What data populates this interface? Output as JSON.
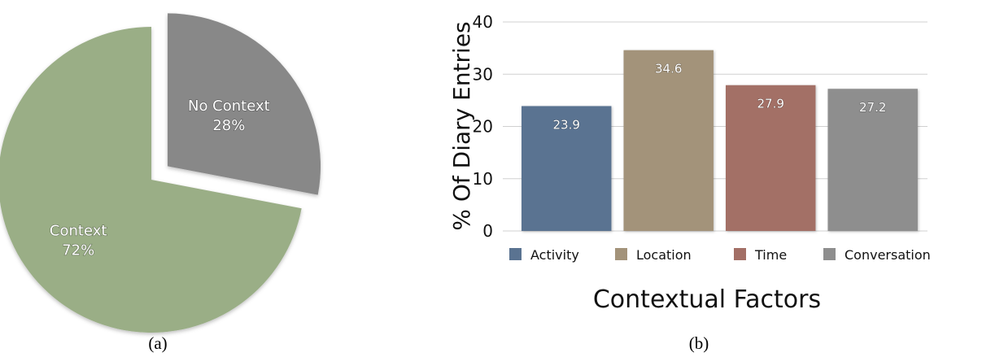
{
  "chart_data": [
    {
      "type": "pie",
      "title": "",
      "slices": [
        {
          "label": "Context",
          "pct_label": "72%",
          "value": 72,
          "color": "#9aae86",
          "exploded": false
        },
        {
          "label": "No Context",
          "pct_label": "28%",
          "value": 28,
          "color": "#888888",
          "exploded": true
        }
      ],
      "caption": "(a)"
    },
    {
      "type": "bar",
      "title": "",
      "categories": [
        "Activity",
        "Location",
        "Time",
        "Conversation"
      ],
      "values": [
        23.9,
        34.6,
        27.9,
        27.2
      ],
      "value_labels": [
        "23.9",
        "34.6",
        "27.9",
        "27.2"
      ],
      "colors": [
        "#5a7391",
        "#a3937a",
        "#a36f66",
        "#8e8e8e"
      ],
      "xlabel": "Contextual Factors",
      "ylabel": "% Of Diary Entries",
      "ylim": [
        0,
        40
      ],
      "yticks": [
        0,
        10,
        20,
        30,
        40
      ],
      "grid": true,
      "legend": "bottom",
      "caption": "(b)"
    }
  ]
}
